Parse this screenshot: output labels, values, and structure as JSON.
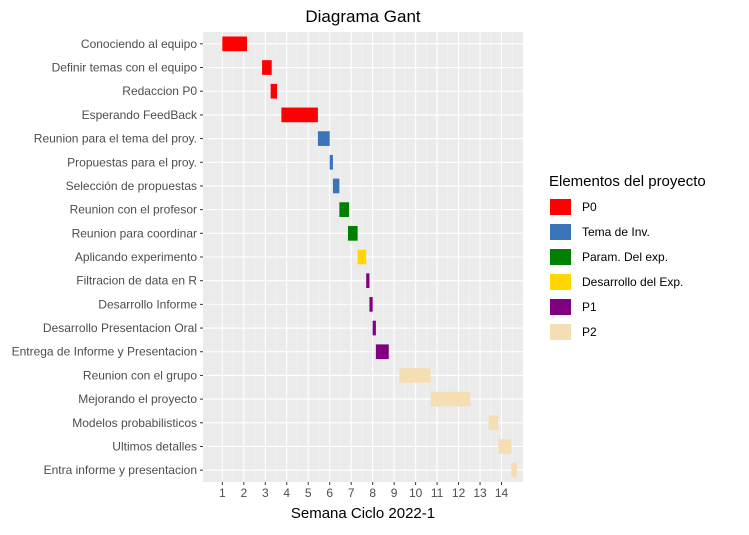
{
  "chart_data": {
    "type": "bar",
    "orientation": "horizontal",
    "title": "Diagrama Gant",
    "xlabel": "Semana Ciclo 2022-1",
    "ylabel": "",
    "xlim": [
      0.1,
      15.0
    ],
    "x_ticks": [
      "1",
      "2",
      "3",
      "4",
      "5",
      "6",
      "7",
      "8",
      "9",
      "10",
      "11",
      "12",
      "13",
      "14"
    ],
    "grid": true,
    "legend": {
      "title": "Elementos del proyecto",
      "placement": "right",
      "entries": [
        {
          "name": "P0",
          "color": "#ff0000"
        },
        {
          "name": "Tema de Inv.",
          "color": "#3a75b9"
        },
        {
          "name": "Param. Del exp.",
          "color": "#008000"
        },
        {
          "name": "Desarrollo del Exp.",
          "color": "#ffd700"
        },
        {
          "name": "P1",
          "color": "#800080"
        },
        {
          "name": "P2",
          "color": "#f5deb3"
        }
      ]
    },
    "tasks": [
      {
        "name": "Conociendo al equipo",
        "start": 1.0,
        "end": 2.15,
        "group": "P0"
      },
      {
        "name": "Definir temas con el equipo",
        "start": 2.85,
        "end": 3.3,
        "group": "P0"
      },
      {
        "name": "Redaccion P0",
        "start": 3.25,
        "end": 3.55,
        "group": "P0"
      },
      {
        "name": "Esperando FeedBack",
        "start": 3.75,
        "end": 5.45,
        "group": "P0"
      },
      {
        "name": "Reunion para el tema del proy.",
        "start": 5.45,
        "end": 6.0,
        "group": "Tema de Inv."
      },
      {
        "name": "Propuestas para el proy.",
        "start": 6.0,
        "end": 6.15,
        "group": "Tema de Inv."
      },
      {
        "name": "Selección de propuestas",
        "start": 6.15,
        "end": 6.45,
        "group": "Tema de Inv."
      },
      {
        "name": "Reunion con el profesor",
        "start": 6.45,
        "end": 6.9,
        "group": "Param. Del exp."
      },
      {
        "name": "Reunion para coordinar",
        "start": 6.85,
        "end": 7.3,
        "group": "Param. Del exp."
      },
      {
        "name": "Aplicando experimento",
        "start": 7.3,
        "end": 7.7,
        "group": "Desarrollo del Exp."
      },
      {
        "name": "Filtracion de data en R",
        "start": 7.7,
        "end": 7.85,
        "group": "P1"
      },
      {
        "name": "Desarrollo Informe",
        "start": 7.85,
        "end": 8.0,
        "group": "P1"
      },
      {
        "name": "Desarrollo Presentacion Oral",
        "start": 8.0,
        "end": 8.15,
        "group": "P1"
      },
      {
        "name": "Entrega de Informe y Presentacion",
        "start": 8.15,
        "end": 8.75,
        "group": "P1"
      },
      {
        "name": "Reunion con el grupo",
        "start": 9.25,
        "end": 10.7,
        "group": "P2"
      },
      {
        "name": "Mejorando el proyecto",
        "start": 10.7,
        "end": 12.55,
        "group": "P2"
      },
      {
        "name": "Modelos probabilisticos",
        "start": 13.4,
        "end": 13.85,
        "group": "P2"
      },
      {
        "name": "Ultimos detalles",
        "start": 13.85,
        "end": 14.45,
        "group": "P2"
      },
      {
        "name": "Entra informe y presentacion",
        "start": 14.45,
        "end": 15.15,
        "group": "P2"
      }
    ]
  }
}
